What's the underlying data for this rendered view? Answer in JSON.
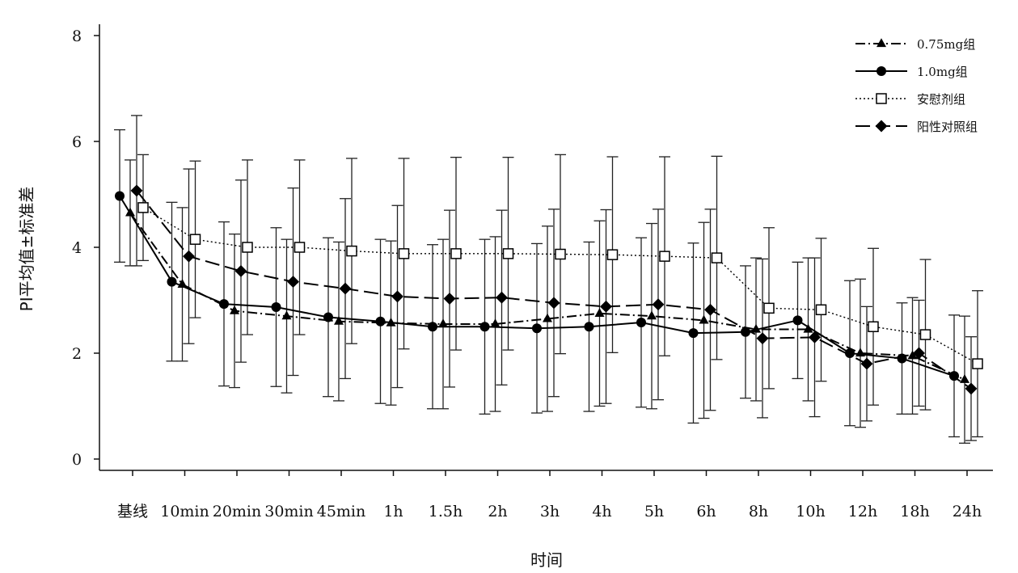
{
  "chart_data": {
    "type": "line",
    "title": "",
    "xlabel": "时间",
    "ylabel": "PI平均值±标准差",
    "ylim": [
      0,
      8
    ],
    "yticks": [
      0,
      2,
      4,
      6,
      8
    ],
    "categories": [
      "基线",
      "10min",
      "20min",
      "30min",
      "45min",
      "1h",
      "1.5h",
      "2h",
      "3h",
      "4h",
      "5h",
      "6h",
      "8h",
      "10h",
      "12h",
      "18h",
      "24h"
    ],
    "grid": false,
    "legend_position": "top-right",
    "series": [
      {
        "name": "0.75mg组",
        "marker": "filled-triangle",
        "line_style": "dash-dot",
        "color": "#000000",
        "values": [
          4.65,
          3.3,
          2.8,
          2.7,
          2.6,
          2.57,
          2.55,
          2.55,
          2.65,
          2.75,
          2.7,
          2.62,
          2.45,
          2.45,
          2.0,
          1.95,
          1.5
        ],
        "sd": [
          1.0,
          1.45,
          1.45,
          1.45,
          1.5,
          1.55,
          1.6,
          1.65,
          1.75,
          1.75,
          1.75,
          1.85,
          1.35,
          1.35,
          1.4,
          1.1,
          1.2
        ]
      },
      {
        "name": "1.0mg组",
        "marker": "filled-circle",
        "line_style": "solid",
        "color": "#000000",
        "values": [
          4.97,
          3.35,
          2.93,
          2.87,
          2.68,
          2.6,
          2.5,
          2.5,
          2.47,
          2.5,
          2.58,
          2.38,
          2.4,
          2.62,
          2.0,
          1.9,
          1.57
        ],
        "sd": [
          1.25,
          1.5,
          1.55,
          1.5,
          1.5,
          1.55,
          1.55,
          1.65,
          1.6,
          1.6,
          1.6,
          1.7,
          1.25,
          1.1,
          1.37,
          1.05,
          1.15
        ]
      },
      {
        "name": "安慰剂组",
        "marker": "open-square",
        "line_style": "dotted",
        "color": "#000000",
        "values": [
          4.75,
          4.15,
          4.0,
          4.0,
          3.93,
          3.88,
          3.88,
          3.88,
          3.87,
          3.86,
          3.83,
          3.8,
          2.85,
          2.82,
          2.5,
          2.35,
          1.8
        ],
        "sd": [
          1.0,
          1.48,
          1.65,
          1.65,
          1.75,
          1.8,
          1.82,
          1.82,
          1.88,
          1.85,
          1.88,
          1.92,
          1.52,
          1.35,
          1.48,
          1.42,
          1.38
        ]
      },
      {
        "name": "阳性对照组",
        "marker": "filled-diamond",
        "line_style": "long-dash",
        "color": "#000000",
        "values": [
          5.07,
          3.83,
          3.55,
          3.35,
          3.22,
          3.07,
          3.03,
          3.05,
          2.95,
          2.88,
          2.92,
          2.82,
          2.28,
          2.3,
          1.8,
          2.0,
          1.33
        ],
        "sd": [
          1.42,
          1.65,
          1.72,
          1.77,
          1.7,
          1.72,
          1.67,
          1.65,
          1.77,
          1.83,
          1.8,
          1.9,
          1.5,
          1.5,
          1.08,
          1.0,
          0.98
        ]
      }
    ]
  }
}
